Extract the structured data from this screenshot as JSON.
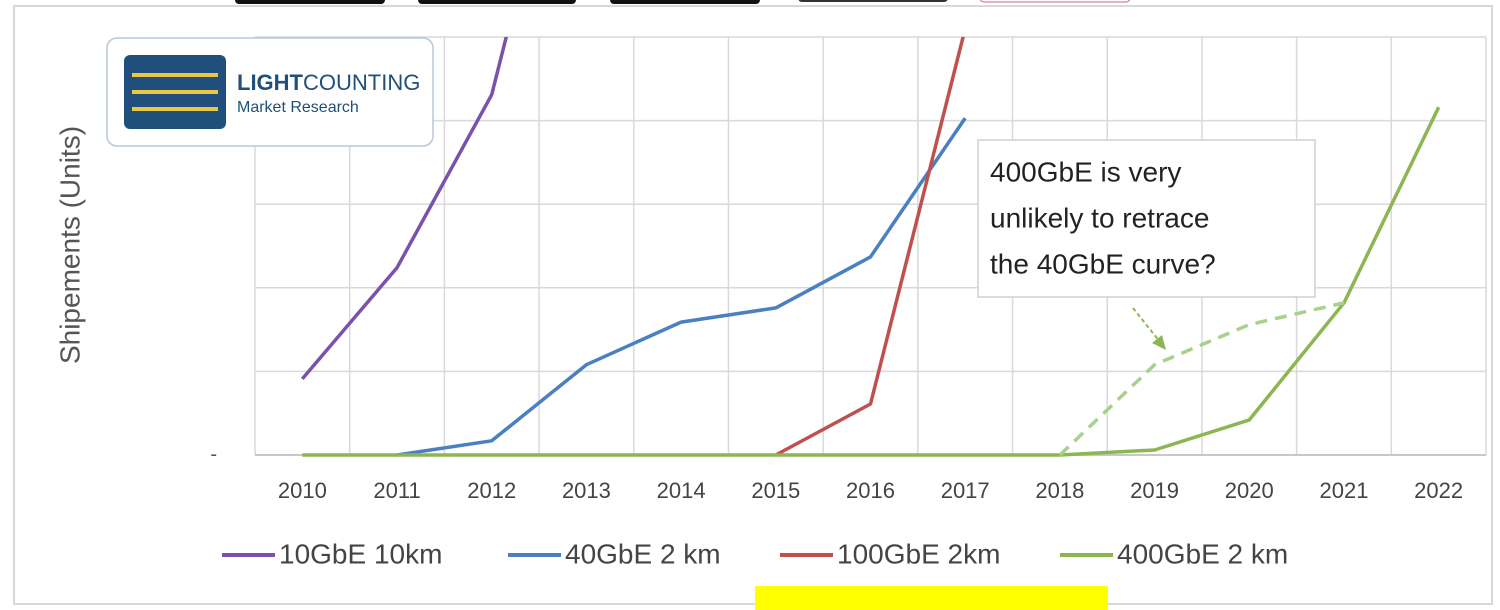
{
  "logo": {
    "brand_bold": "LIGHT",
    "brand": "COUNTING",
    "subtitle": "Market Research"
  },
  "chart_data": {
    "type": "line",
    "ylabel": "Shipements (Units)",
    "categories": [
      "2010",
      "2011",
      "2012",
      "2013",
      "2014",
      "2015",
      "2016",
      "2017",
      "2018",
      "2019",
      "2020",
      "2021",
      "2022"
    ],
    "ylim": [
      0,
      5
    ],
    "yticks": [
      {
        "value": 0,
        "label": "-"
      }
    ],
    "ygrid": [
      1,
      2,
      3,
      4,
      5
    ],
    "grid": true,
    "series": [
      {
        "name": "10GbE 10km",
        "color": "#7b52ab",
        "values": [
          0.91,
          2.24,
          4.31,
          8.8,
          null,
          null,
          null,
          null,
          null,
          null,
          null,
          null,
          null
        ]
      },
      {
        "name": "40GbE 2 km",
        "color": "#4a7fc1",
        "values": [
          null,
          0,
          0.17,
          1.08,
          1.59,
          1.76,
          2.37,
          4.03,
          null,
          null,
          null,
          null,
          null
        ]
      },
      {
        "name": "100GbE 2km",
        "color": "#c0504d",
        "values": [
          null,
          null,
          null,
          null,
          null,
          0,
          0.61,
          5.1,
          null,
          null,
          null,
          null,
          null
        ]
      },
      {
        "name": "400GbE 2 km",
        "color": "#8db652",
        "values": [
          0,
          0,
          0,
          0,
          0,
          0,
          0,
          0,
          0,
          0.06,
          0.42,
          1.82,
          4.16
        ]
      },
      {
        "color": "#a9d18e",
        "dashed": true,
        "values": [
          null,
          null,
          null,
          null,
          null,
          null,
          null,
          null,
          0,
          1.08,
          1.56,
          1.82,
          null
        ]
      }
    ],
    "annotation": [
      "400GbE is very",
      "unlikely to retrace",
      "the 40GbE curve?"
    ]
  }
}
